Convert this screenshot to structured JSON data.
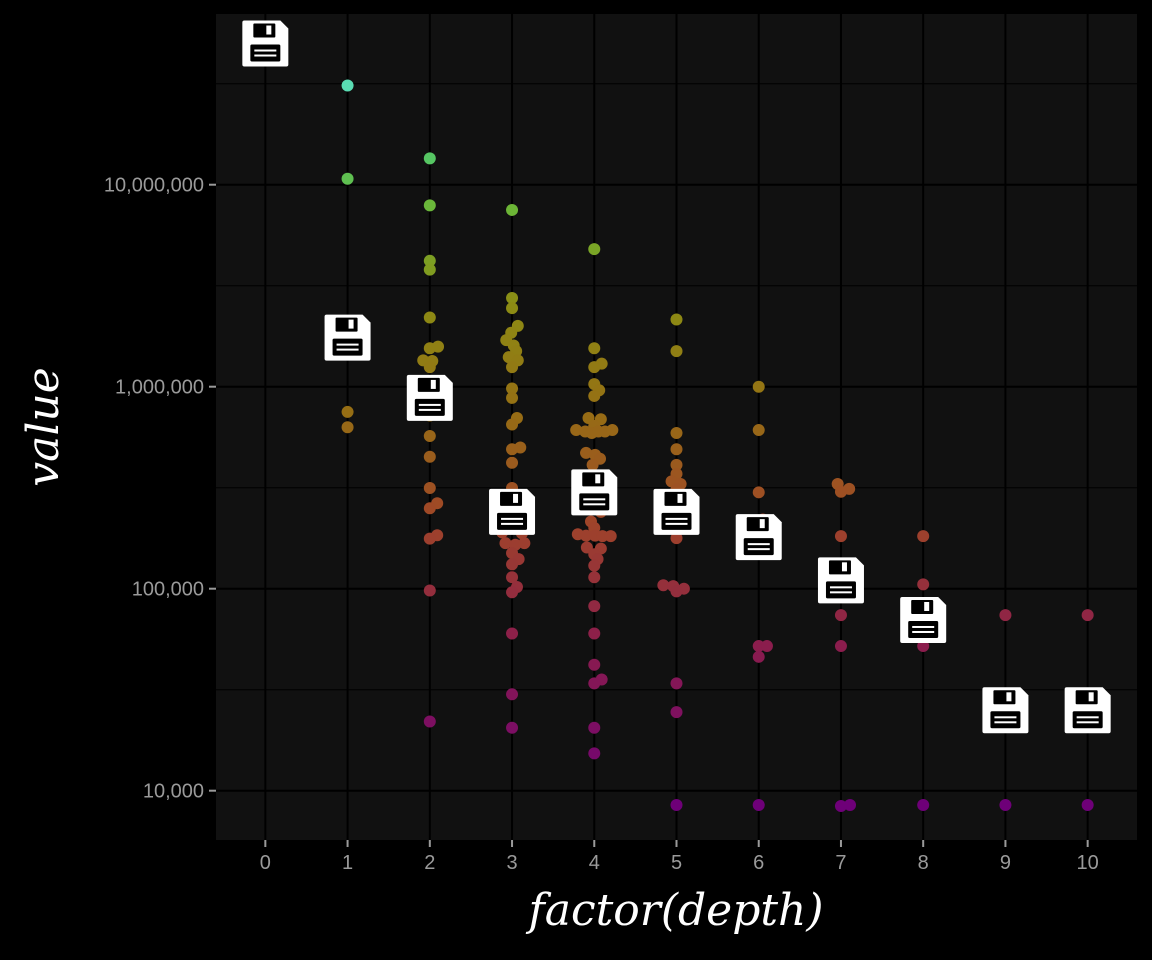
{
  "chart_data": {
    "type": "scatter",
    "title": "",
    "xlabel": "factor(depth)",
    "ylabel": "value",
    "y_scale": "log10",
    "ylim": [
      5700,
      70000000
    ],
    "xlim": [
      -0.6,
      10.6
    ],
    "grid": true,
    "legend": "none",
    "categories": [
      "0",
      "1",
      "2",
      "3",
      "4",
      "5",
      "6",
      "7",
      "8",
      "9",
      "10"
    ],
    "y_ticks": [
      {
        "value": 10000,
        "label": "10,000"
      },
      {
        "value": 100000,
        "label": "100,000"
      },
      {
        "value": 1000000,
        "label": "1,000,000"
      },
      {
        "value": 10000000,
        "label": "10,000,000"
      }
    ],
    "colors": {
      "background": "#000000",
      "panel": "#111111",
      "grid": "#000000",
      "tick_text": "#9a9a9a",
      "title_text": "#ffffff",
      "summary_icon": "#ffffff"
    },
    "summary_icon": "floppy-disk-icon",
    "summary_points": [
      {
        "x": 0,
        "y": 50000000
      },
      {
        "x": 1,
        "y": 1750000
      },
      {
        "x": 2,
        "y": 880000
      },
      {
        "x": 3,
        "y": 240000
      },
      {
        "x": 4,
        "y": 300000
      },
      {
        "x": 5,
        "y": 240000
      },
      {
        "x": 6,
        "y": 180000
      },
      {
        "x": 7,
        "y": 110000
      },
      {
        "x": 8,
        "y": 70000
      },
      {
        "x": 9,
        "y": 25000
      },
      {
        "x": 10,
        "y": 25000
      }
    ],
    "points": [
      {
        "x": 0,
        "dx": 0,
        "y": 48000000
      },
      {
        "x": 1,
        "dx": 0,
        "y": 31000000
      },
      {
        "x": 1,
        "dx": 0,
        "y": 10700000
      },
      {
        "x": 1,
        "dx": 0,
        "y": 1750000
      },
      {
        "x": 1,
        "dx": 0,
        "y": 750000
      },
      {
        "x": 1,
        "dx": 0,
        "y": 630000
      },
      {
        "x": 2,
        "dx": 0,
        "y": 13500000
      },
      {
        "x": 2,
        "dx": 0,
        "y": 7900000
      },
      {
        "x": 2,
        "dx": 0,
        "y": 4200000
      },
      {
        "x": 2,
        "dx": 0,
        "y": 3800000
      },
      {
        "x": 2,
        "dx": 0,
        "y": 2200000
      },
      {
        "x": 2,
        "dx": 0,
        "y": 1550000
      },
      {
        "x": 2,
        "dx": 0.1,
        "y": 1580000
      },
      {
        "x": 2,
        "dx": -0.08,
        "y": 1350000
      },
      {
        "x": 2,
        "dx": 0.03,
        "y": 1340000
      },
      {
        "x": 2,
        "dx": 0,
        "y": 1250000
      },
      {
        "x": 2,
        "dx": 0,
        "y": 1050000
      },
      {
        "x": 2,
        "dx": 0.05,
        "y": 950000
      },
      {
        "x": 2,
        "dx": 0,
        "y": 880000
      },
      {
        "x": 2,
        "dx": 0,
        "y": 720000
      },
      {
        "x": 2,
        "dx": 0,
        "y": 570000
      },
      {
        "x": 2,
        "dx": 0,
        "y": 450000
      },
      {
        "x": 2,
        "dx": 0,
        "y": 315000
      },
      {
        "x": 2,
        "dx": 0.09,
        "y": 265000
      },
      {
        "x": 2,
        "dx": 0,
        "y": 250000
      },
      {
        "x": 2,
        "dx": 0.09,
        "y": 184000
      },
      {
        "x": 2,
        "dx": 0,
        "y": 177000
      },
      {
        "x": 2,
        "dx": 0,
        "y": 98000
      },
      {
        "x": 2,
        "dx": 0,
        "y": 22000
      },
      {
        "x": 3,
        "dx": 0,
        "y": 7500000
      },
      {
        "x": 3,
        "dx": 0,
        "y": 2750000
      },
      {
        "x": 3,
        "dx": 0,
        "y": 2450000
      },
      {
        "x": 3,
        "dx": 0.07,
        "y": 2000000
      },
      {
        "x": 3,
        "dx": -0.01,
        "y": 1850000
      },
      {
        "x": 3,
        "dx": -0.07,
        "y": 1700000
      },
      {
        "x": 3,
        "dx": 0.02,
        "y": 1600000
      },
      {
        "x": 3,
        "dx": 0.05,
        "y": 1500000
      },
      {
        "x": 3,
        "dx": -0.04,
        "y": 1400000
      },
      {
        "x": 3,
        "dx": 0.07,
        "y": 1350000
      },
      {
        "x": 3,
        "dx": 0,
        "y": 1250000
      },
      {
        "x": 3,
        "dx": 0,
        "y": 980000
      },
      {
        "x": 3,
        "dx": 0,
        "y": 880000
      },
      {
        "x": 3,
        "dx": 0.06,
        "y": 700000
      },
      {
        "x": 3,
        "dx": 0,
        "y": 650000
      },
      {
        "x": 3,
        "dx": 0.1,
        "y": 500000
      },
      {
        "x": 3,
        "dx": 0,
        "y": 490000
      },
      {
        "x": 3,
        "dx": 0,
        "y": 420000
      },
      {
        "x": 3,
        "dx": 0,
        "y": 315000
      },
      {
        "x": 3,
        "dx": 0.06,
        "y": 285000
      },
      {
        "x": 3,
        "dx": -0.04,
        "y": 240000
      },
      {
        "x": 3,
        "dx": 0.05,
        "y": 230000
      },
      {
        "x": 3,
        "dx": 0,
        "y": 215000
      },
      {
        "x": 3,
        "dx": -0.12,
        "y": 190000
      },
      {
        "x": 3,
        "dx": 0.12,
        "y": 188000
      },
      {
        "x": 3,
        "dx": -0.08,
        "y": 168000
      },
      {
        "x": 3,
        "dx": 0.04,
        "y": 165000
      },
      {
        "x": 3,
        "dx": 0.15,
        "y": 168000
      },
      {
        "x": 3,
        "dx": 0,
        "y": 150000
      },
      {
        "x": 3,
        "dx": 0.08,
        "y": 140000
      },
      {
        "x": 3,
        "dx": 0,
        "y": 132000
      },
      {
        "x": 3,
        "dx": 0,
        "y": 114000
      },
      {
        "x": 3,
        "dx": 0.06,
        "y": 102000
      },
      {
        "x": 3,
        "dx": 0,
        "y": 96000
      },
      {
        "x": 3,
        "dx": 0,
        "y": 60000
      },
      {
        "x": 3,
        "dx": 0,
        "y": 30000
      },
      {
        "x": 3,
        "dx": 0,
        "y": 20500
      },
      {
        "x": 4,
        "dx": 0,
        "y": 4800000
      },
      {
        "x": 4,
        "dx": 0,
        "y": 1550000
      },
      {
        "x": 4,
        "dx": 0.09,
        "y": 1300000
      },
      {
        "x": 4,
        "dx": 0,
        "y": 1250000
      },
      {
        "x": 4,
        "dx": 0,
        "y": 1030000
      },
      {
        "x": 4,
        "dx": 0.06,
        "y": 960000
      },
      {
        "x": 4,
        "dx": 0,
        "y": 900000
      },
      {
        "x": 4,
        "dx": -0.07,
        "y": 700000
      },
      {
        "x": 4,
        "dx": 0.08,
        "y": 690000
      },
      {
        "x": 4,
        "dx": 0,
        "y": 640000
      },
      {
        "x": 4,
        "dx": -0.22,
        "y": 610000
      },
      {
        "x": 4,
        "dx": -0.11,
        "y": 600000
      },
      {
        "x": 4,
        "dx": -0.03,
        "y": 590000
      },
      {
        "x": 4,
        "dx": 0.05,
        "y": 600000
      },
      {
        "x": 4,
        "dx": 0.13,
        "y": 600000
      },
      {
        "x": 4,
        "dx": 0.22,
        "y": 610000
      },
      {
        "x": 4,
        "dx": -0.1,
        "y": 470000
      },
      {
        "x": 4,
        "dx": 0.01,
        "y": 460000
      },
      {
        "x": 4,
        "dx": 0.07,
        "y": 440000
      },
      {
        "x": 4,
        "dx": -0.02,
        "y": 410000
      },
      {
        "x": 4,
        "dx": 0,
        "y": 290000
      },
      {
        "x": 4,
        "dx": 0.08,
        "y": 240000
      },
      {
        "x": 4,
        "dx": -0.04,
        "y": 215000
      },
      {
        "x": 4,
        "dx": 0,
        "y": 200000
      },
      {
        "x": 4,
        "dx": -0.2,
        "y": 186000
      },
      {
        "x": 4,
        "dx": -0.1,
        "y": 183000
      },
      {
        "x": 4,
        "dx": 0.01,
        "y": 183000
      },
      {
        "x": 4,
        "dx": 0.1,
        "y": 182000
      },
      {
        "x": 4,
        "dx": 0.2,
        "y": 182000
      },
      {
        "x": 4,
        "dx": -0.09,
        "y": 160000
      },
      {
        "x": 4,
        "dx": 0.08,
        "y": 158000
      },
      {
        "x": 4,
        "dx": 0,
        "y": 148000
      },
      {
        "x": 4,
        "dx": 0.04,
        "y": 140000
      },
      {
        "x": 4,
        "dx": 0,
        "y": 130000
      },
      {
        "x": 4,
        "dx": 0,
        "y": 114000
      },
      {
        "x": 4,
        "dx": 0,
        "y": 82000
      },
      {
        "x": 4,
        "dx": 0,
        "y": 60000
      },
      {
        "x": 4,
        "dx": 0,
        "y": 42000
      },
      {
        "x": 4,
        "dx": 0.09,
        "y": 35500
      },
      {
        "x": 4,
        "dx": 0,
        "y": 34000
      },
      {
        "x": 4,
        "dx": 0,
        "y": 20500
      },
      {
        "x": 4,
        "dx": 0,
        "y": 15300
      },
      {
        "x": 5,
        "dx": 0,
        "y": 2150000
      },
      {
        "x": 5,
        "dx": 0,
        "y": 1500000
      },
      {
        "x": 5,
        "dx": 0,
        "y": 590000
      },
      {
        "x": 5,
        "dx": 0,
        "y": 490000
      },
      {
        "x": 5,
        "dx": 0,
        "y": 410000
      },
      {
        "x": 5,
        "dx": 0,
        "y": 370000
      },
      {
        "x": 5,
        "dx": -0.06,
        "y": 340000
      },
      {
        "x": 5,
        "dx": 0.05,
        "y": 330000
      },
      {
        "x": 5,
        "dx": 0,
        "y": 310000
      },
      {
        "x": 5,
        "dx": 0.05,
        "y": 260000
      },
      {
        "x": 5,
        "dx": -0.06,
        "y": 240000
      },
      {
        "x": 5,
        "dx": 0.07,
        "y": 200000
      },
      {
        "x": 5,
        "dx": 0,
        "y": 178000
      },
      {
        "x": 5,
        "dx": -0.16,
        "y": 104000
      },
      {
        "x": 5,
        "dx": -0.04,
        "y": 103000
      },
      {
        "x": 5,
        "dx": 0.09,
        "y": 100000
      },
      {
        "x": 5,
        "dx": 0,
        "y": 97000
      },
      {
        "x": 5,
        "dx": 0,
        "y": 34000
      },
      {
        "x": 5,
        "dx": 0,
        "y": 24500
      },
      {
        "x": 5,
        "dx": 0,
        "y": 8500
      },
      {
        "x": 6,
        "dx": 0,
        "y": 1000000
      },
      {
        "x": 6,
        "dx": 0,
        "y": 610000
      },
      {
        "x": 6,
        "dx": 0,
        "y": 300000
      },
      {
        "x": 6,
        "dx": 0.05,
        "y": 220000
      },
      {
        "x": 6,
        "dx": 0,
        "y": 180000
      },
      {
        "x": 6,
        "dx": 0,
        "y": 155000
      },
      {
        "x": 6,
        "dx": 0,
        "y": 52000
      },
      {
        "x": 6,
        "dx": 0.1,
        "y": 52000
      },
      {
        "x": 6,
        "dx": 0,
        "y": 46000
      },
      {
        "x": 6,
        "dx": 0,
        "y": 8500
      },
      {
        "x": 7,
        "dx": -0.04,
        "y": 330000
      },
      {
        "x": 7,
        "dx": 0.1,
        "y": 312000
      },
      {
        "x": 7,
        "dx": 0,
        "y": 302000
      },
      {
        "x": 7,
        "dx": 0,
        "y": 182000
      },
      {
        "x": 7,
        "dx": 0,
        "y": 74000
      },
      {
        "x": 7,
        "dx": 0,
        "y": 52000
      },
      {
        "x": 7,
        "dx": 0,
        "y": 8400
      },
      {
        "x": 7,
        "dx": 0.11,
        "y": 8500
      },
      {
        "x": 8,
        "dx": 0,
        "y": 182000
      },
      {
        "x": 8,
        "dx": 0,
        "y": 105000
      },
      {
        "x": 8,
        "dx": 0,
        "y": 52000
      },
      {
        "x": 8,
        "dx": 0,
        "y": 8500
      },
      {
        "x": 9,
        "dx": 0,
        "y": 74000
      },
      {
        "x": 9,
        "dx": 0,
        "y": 8500
      },
      {
        "x": 10,
        "dx": 0,
        "y": 74000
      },
      {
        "x": 10,
        "dx": 0,
        "y": 8500
      }
    ]
  }
}
